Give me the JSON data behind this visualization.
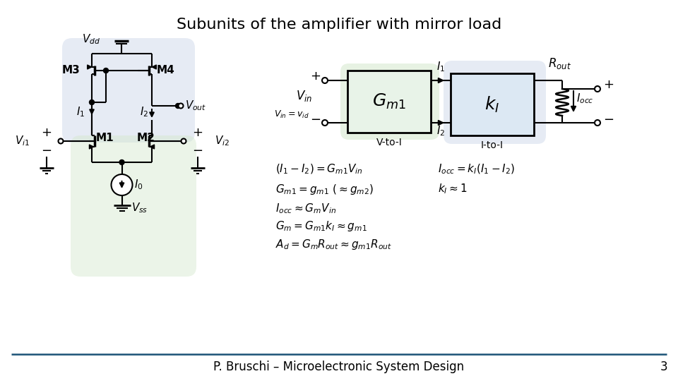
{
  "title": "Subunits of the amplifier with mirror load",
  "title_fontsize": 16,
  "footer": "P. Bruschi – Microelectronic System Design",
  "footer_fontsize": 12,
  "page_number": "3",
  "bg_color": "#ffffff",
  "blue_bg": "#c8d4e8",
  "green_bg": "#d4e8cc",
  "border_line": "#1a5276",
  "line_color": "#000000"
}
